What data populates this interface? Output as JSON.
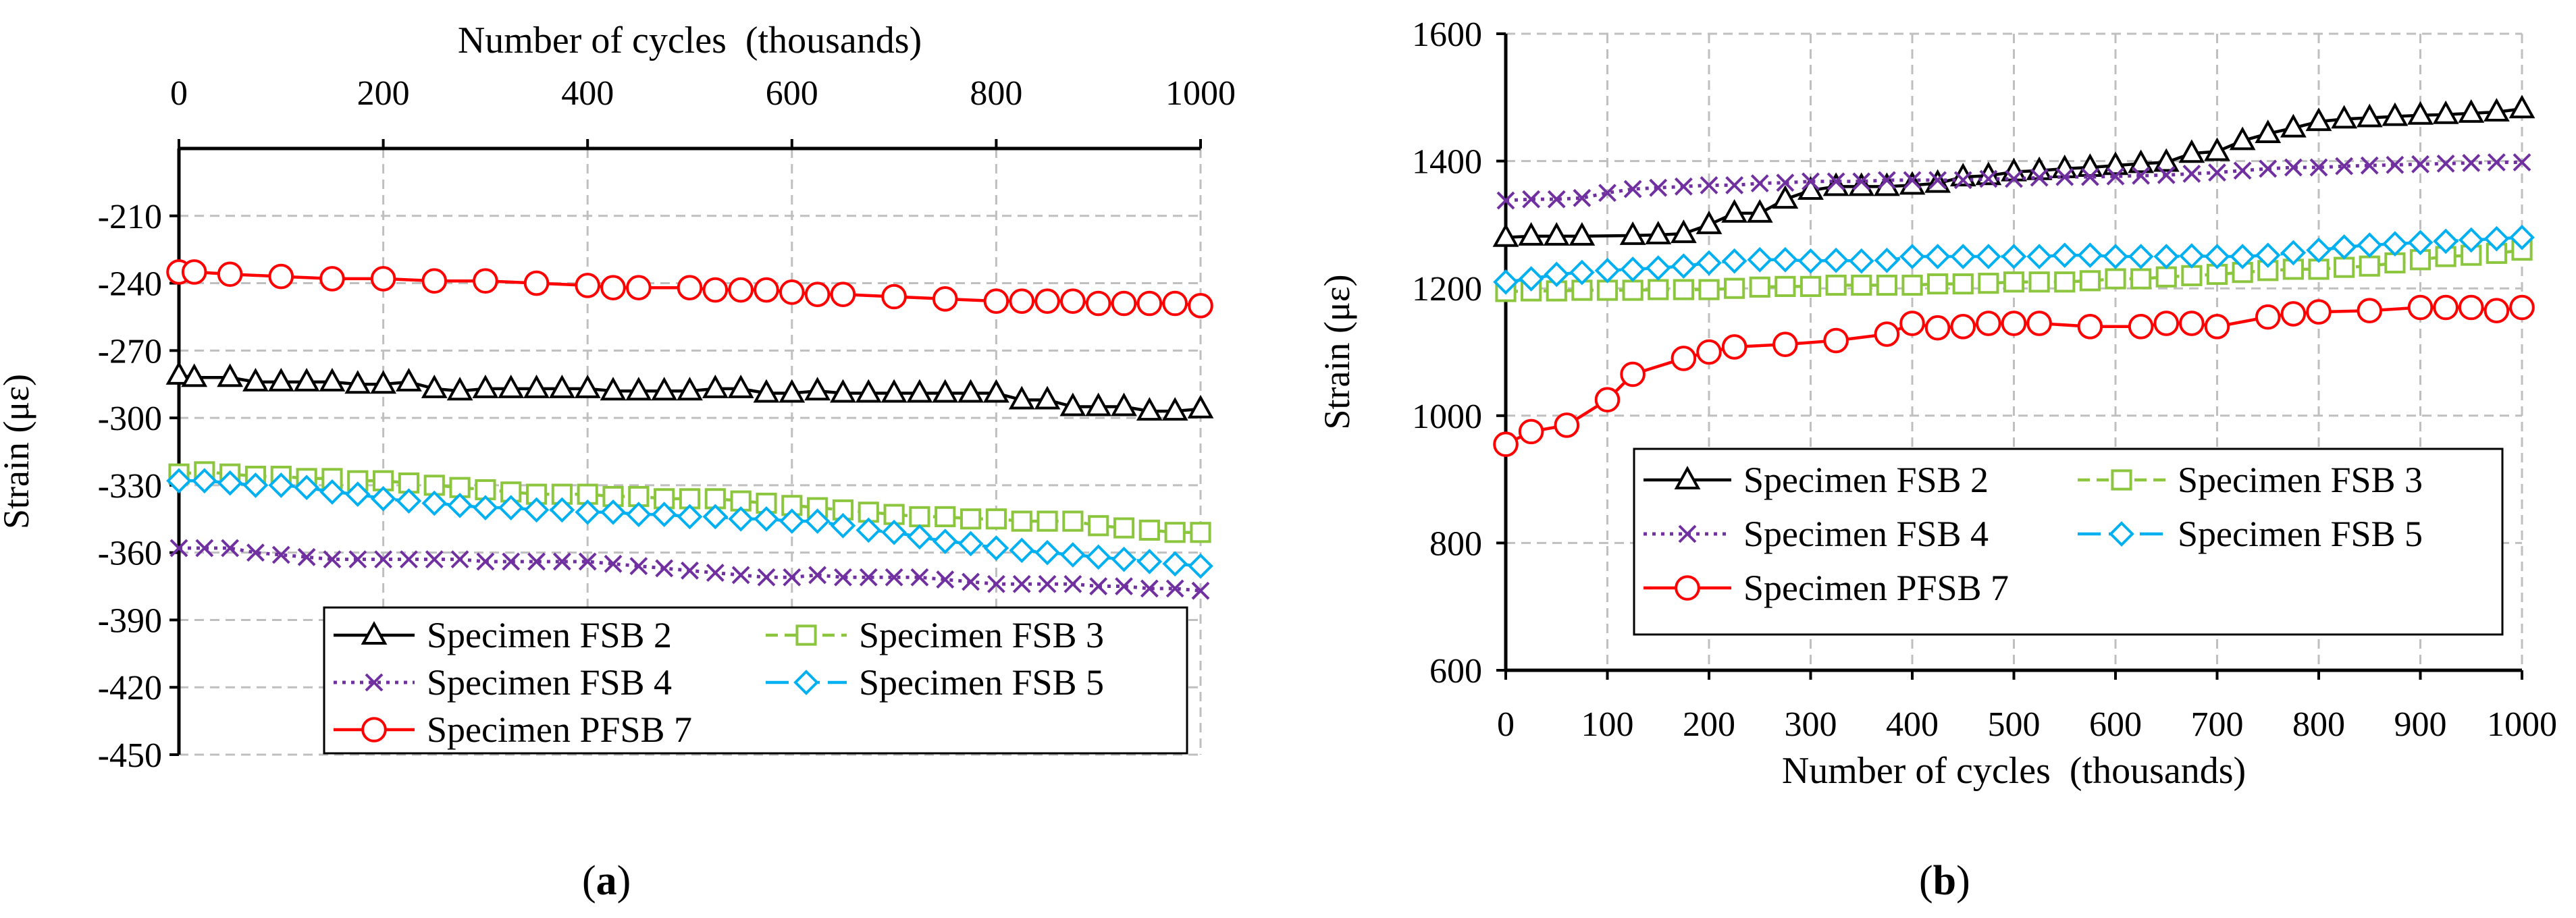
{
  "chart_data": [
    {
      "panel": "a",
      "caption": {
        "open": "(",
        "letter": "a",
        "close": ")"
      },
      "type": "line",
      "xlabel": "Number of cycles  (thousands)",
      "xlabel_position": "top",
      "ylabel": "Strain (με)",
      "xlim": [
        0,
        1000
      ],
      "ylim": [
        -450,
        -180
      ],
      "xticks": [
        0,
        200,
        400,
        600,
        800,
        1000
      ],
      "yticks": [
        -210,
        -240,
        -270,
        -300,
        -330,
        -360,
        -390,
        -420,
        -450
      ],
      "grid": true,
      "legend": {
        "placement": "bottom-right",
        "columns": 2
      },
      "series": [
        {
          "name": "Specimen FSB 2",
          "color": "#000000",
          "marker": "triangle",
          "dash": "solid",
          "x": [
            0,
            15,
            50,
            75,
            100,
            125,
            150,
            175,
            200,
            225,
            250,
            275,
            300,
            325,
            350,
            375,
            400,
            425,
            450,
            475,
            500,
            525,
            550,
            575,
            600,
            625,
            650,
            675,
            700,
            725,
            750,
            775,
            800,
            825,
            850,
            875,
            900,
            925,
            950,
            975,
            1000
          ],
          "y": [
            -281,
            -282,
            -282,
            -284,
            -284,
            -284,
            -284,
            -285,
            -285,
            -284,
            -287,
            -288,
            -287,
            -287,
            -287,
            -287,
            -287,
            -288,
            -288,
            -288,
            -288,
            -287,
            -287,
            -289,
            -289,
            -288,
            -289,
            -289,
            -289,
            -289,
            -289,
            -289,
            -289,
            -292,
            -292,
            -295,
            -295,
            -295,
            -297,
            -297,
            -296
          ]
        },
        {
          "name": "Specimen FSB 3",
          "color": "#8CC63F",
          "marker": "square",
          "dash": "dash",
          "x": [
            0,
            25,
            50,
            75,
            100,
            125,
            150,
            175,
            200,
            225,
            250,
            275,
            300,
            325,
            350,
            375,
            400,
            425,
            450,
            475,
            500,
            525,
            550,
            575,
            600,
            625,
            650,
            675,
            700,
            725,
            750,
            775,
            800,
            825,
            850,
            875,
            900,
            925,
            950,
            975,
            1000
          ],
          "y": [
            -325,
            -324,
            -325,
            -326,
            -326,
            -327,
            -327,
            -328,
            -328,
            -329,
            -330,
            -331,
            -332,
            -333,
            -334,
            -334,
            -334,
            -335,
            -335,
            -336,
            -336,
            -336,
            -337,
            -338,
            -339,
            -340,
            -341,
            -342,
            -343,
            -344,
            -344,
            -345,
            -345,
            -346,
            -346,
            -346,
            -348,
            -349,
            -350,
            -351,
            -351
          ]
        },
        {
          "name": "Specimen FSB 4",
          "color": "#7030A0",
          "marker": "x",
          "dash": "dot",
          "x": [
            0,
            25,
            50,
            75,
            100,
            125,
            150,
            175,
            200,
            225,
            250,
            275,
            300,
            325,
            350,
            375,
            400,
            425,
            450,
            475,
            500,
            525,
            550,
            575,
            600,
            625,
            650,
            675,
            700,
            725,
            750,
            775,
            800,
            825,
            850,
            875,
            900,
            925,
            950,
            975,
            1000
          ],
          "y": [
            -358,
            -358,
            -358,
            -360,
            -361,
            -362,
            -363,
            -363,
            -363,
            -363,
            -363,
            -363,
            -364,
            -364,
            -364,
            -364,
            -364,
            -365,
            -366,
            -367,
            -368,
            -369,
            -370,
            -371,
            -371,
            -370,
            -371,
            -371,
            -371,
            -371,
            -372,
            -373,
            -374,
            -374,
            -374,
            -374,
            -375,
            -375,
            -376,
            -376,
            -377
          ]
        },
        {
          "name": "Specimen FSB 5",
          "color": "#00B0F0",
          "marker": "diamond",
          "dash": "longdash",
          "x": [
            0,
            25,
            50,
            75,
            100,
            125,
            150,
            175,
            200,
            225,
            250,
            275,
            300,
            325,
            350,
            375,
            400,
            425,
            450,
            475,
            500,
            525,
            550,
            575,
            600,
            625,
            650,
            675,
            700,
            725,
            750,
            775,
            800,
            825,
            850,
            875,
            900,
            925,
            950,
            975,
            1000
          ],
          "y": [
            -328,
            -328,
            -329,
            -330,
            -330,
            -331,
            -333,
            -334,
            -336,
            -337,
            -338,
            -339,
            -340,
            -340,
            -341,
            -341,
            -342,
            -342,
            -343,
            -343,
            -344,
            -344,
            -345,
            -345,
            -346,
            -346,
            -348,
            -350,
            -351,
            -353,
            -355,
            -356,
            -358,
            -359,
            -360,
            -361,
            -362,
            -363,
            -364,
            -365,
            -366
          ]
        },
        {
          "name": "Specimen PFSB 7",
          "color": "#FF0000",
          "marker": "circle",
          "dash": "solid",
          "x": [
            0,
            15,
            50,
            100,
            150,
            200,
            250,
            300,
            350,
            400,
            425,
            450,
            500,
            525,
            550,
            575,
            600,
            625,
            650,
            700,
            750,
            800,
            825,
            850,
            875,
            900,
            925,
            950,
            975,
            1000
          ],
          "y": [
            -235,
            -235,
            -236,
            -237,
            -238,
            -238,
            -239,
            -239,
            -240,
            -241,
            -242,
            -242,
            -242,
            -243,
            -243,
            -243,
            -244,
            -245,
            -245,
            -246,
            -247,
            -248,
            -248,
            -248,
            -248,
            -249,
            -249,
            -249,
            -249,
            -250
          ]
        }
      ]
    },
    {
      "panel": "b",
      "caption": {
        "open": "(",
        "letter": "b",
        "close": ")"
      },
      "type": "line",
      "xlabel": "Number of cycles  (thousands)",
      "xlabel_position": "bottom",
      "ylabel": "Strain (με)",
      "xlim": [
        0,
        1000
      ],
      "ylim": [
        600,
        1600
      ],
      "xticks": [
        0,
        100,
        200,
        300,
        400,
        500,
        600,
        700,
        800,
        900,
        1000
      ],
      "yticks": [
        600,
        800,
        1000,
        1200,
        1400,
        1600
      ],
      "grid": true,
      "legend": {
        "placement": "bottom-left",
        "columns": 2
      },
      "series": [
        {
          "name": "Specimen FSB 2",
          "color": "#000000",
          "marker": "triangle",
          "dash": "solid",
          "x": [
            0,
            25,
            50,
            75,
            125,
            150,
            175,
            200,
            225,
            250,
            275,
            300,
            325,
            350,
            375,
            400,
            425,
            450,
            475,
            500,
            525,
            550,
            575,
            600,
            625,
            650,
            675,
            700,
            725,
            750,
            775,
            800,
            825,
            850,
            875,
            900,
            925,
            950,
            975,
            1000
          ],
          "y": [
            1280,
            1282,
            1282,
            1282,
            1283,
            1284,
            1286,
            1300,
            1318,
            1318,
            1340,
            1354,
            1360,
            1360,
            1360,
            1362,
            1365,
            1375,
            1377,
            1383,
            1385,
            1388,
            1390,
            1393,
            1396,
            1398,
            1412,
            1415,
            1432,
            1443,
            1452,
            1462,
            1466,
            1468,
            1470,
            1472,
            1473,
            1475,
            1477,
            1482
          ]
        },
        {
          "name": "Specimen FSB 3",
          "color": "#8CC63F",
          "marker": "square",
          "dash": "dash",
          "x": [
            0,
            25,
            50,
            75,
            100,
            125,
            150,
            175,
            200,
            225,
            250,
            275,
            300,
            325,
            350,
            375,
            400,
            425,
            450,
            475,
            500,
            525,
            550,
            575,
            600,
            625,
            650,
            675,
            700,
            725,
            750,
            775,
            800,
            825,
            850,
            875,
            900,
            925,
            950,
            975,
            1000
          ],
          "y": [
            1195,
            1196,
            1196,
            1197,
            1197,
            1197,
            1198,
            1198,
            1198,
            1200,
            1202,
            1203,
            1203,
            1205,
            1205,
            1205,
            1205,
            1207,
            1207,
            1208,
            1210,
            1210,
            1210,
            1212,
            1215,
            1215,
            1218,
            1220,
            1222,
            1225,
            1228,
            1230,
            1230,
            1233,
            1235,
            1240,
            1245,
            1250,
            1252,
            1255,
            1260
          ]
        },
        {
          "name": "Specimen FSB 4",
          "color": "#7030A0",
          "marker": "x",
          "dash": "dot",
          "x": [
            0,
            25,
            50,
            75,
            100,
            125,
            150,
            175,
            200,
            225,
            250,
            275,
            300,
            325,
            350,
            375,
            400,
            425,
            450,
            475,
            500,
            525,
            550,
            575,
            600,
            625,
            650,
            675,
            700,
            725,
            750,
            775,
            800,
            825,
            850,
            875,
            900,
            925,
            950,
            975,
            1000
          ],
          "y": [
            1338,
            1340,
            1340,
            1342,
            1350,
            1356,
            1358,
            1360,
            1362,
            1362,
            1365,
            1366,
            1368,
            1368,
            1368,
            1370,
            1370,
            1370,
            1370,
            1372,
            1372,
            1374,
            1375,
            1375,
            1376,
            1377,
            1378,
            1380,
            1382,
            1385,
            1388,
            1390,
            1390,
            1392,
            1393,
            1394,
            1395,
            1396,
            1397,
            1398,
            1398
          ]
        },
        {
          "name": "Specimen FSB 5",
          "color": "#00B0F0",
          "marker": "diamond",
          "dash": "longdash",
          "x": [
            0,
            25,
            50,
            75,
            100,
            125,
            150,
            175,
            200,
            225,
            250,
            275,
            300,
            325,
            350,
            375,
            400,
            425,
            450,
            475,
            500,
            525,
            550,
            575,
            600,
            625,
            650,
            675,
            700,
            725,
            750,
            775,
            800,
            825,
            850,
            875,
            900,
            925,
            950,
            975,
            1000
          ],
          "y": [
            1210,
            1215,
            1222,
            1225,
            1228,
            1230,
            1232,
            1235,
            1240,
            1243,
            1245,
            1245,
            1243,
            1244,
            1243,
            1244,
            1250,
            1250,
            1250,
            1250,
            1250,
            1250,
            1252,
            1252,
            1250,
            1250,
            1250,
            1251,
            1250,
            1250,
            1252,
            1256,
            1260,
            1265,
            1268,
            1270,
            1272,
            1274,
            1276,
            1278,
            1280
          ]
        },
        {
          "name": "Specimen PFSB 7",
          "color": "#FF0000",
          "marker": "circle",
          "dash": "solid",
          "x": [
            0,
            25,
            60,
            100,
            125,
            175,
            200,
            225,
            275,
            325,
            375,
            400,
            425,
            450,
            475,
            500,
            525,
            575,
            625,
            650,
            675,
            700,
            750,
            775,
            800,
            850,
            900,
            925,
            950,
            975,
            1000
          ],
          "y": [
            955,
            975,
            985,
            1025,
            1065,
            1090,
            1100,
            1108,
            1112,
            1118,
            1128,
            1145,
            1138,
            1140,
            1145,
            1145,
            1145,
            1140,
            1140,
            1145,
            1145,
            1140,
            1155,
            1160,
            1163,
            1165,
            1170,
            1170,
            1170,
            1165,
            1170
          ]
        }
      ]
    }
  ]
}
